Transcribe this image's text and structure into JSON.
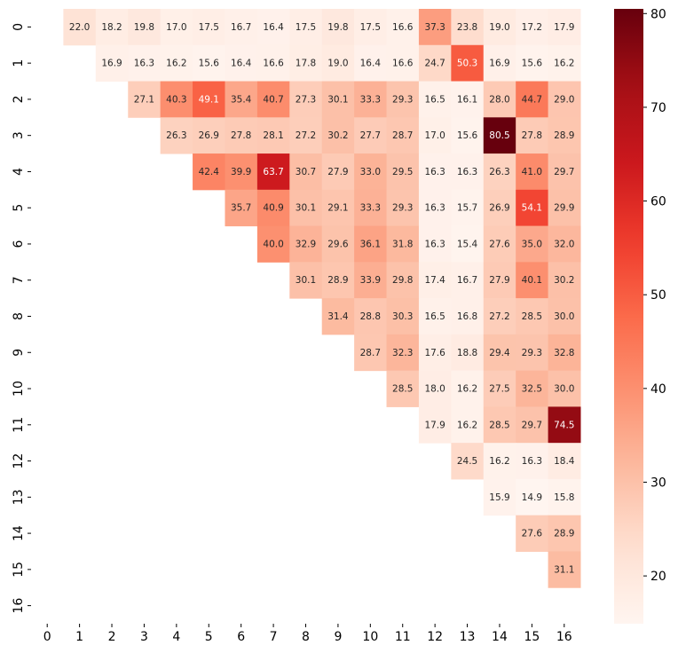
{
  "chart_data": {
    "type": "heatmap",
    "title": "",
    "xlabel": "",
    "ylabel": "",
    "x_tick_labels": [
      "0",
      "1",
      "2",
      "3",
      "4",
      "5",
      "6",
      "7",
      "8",
      "9",
      "10",
      "11",
      "12",
      "13",
      "14",
      "15",
      "16"
    ],
    "y_tick_labels": [
      "0",
      "1",
      "2",
      "3",
      "4",
      "5",
      "6",
      "7",
      "8",
      "9",
      "10",
      "11",
      "12",
      "13",
      "14",
      "15",
      "16"
    ],
    "colormap": "Reds",
    "vmin": 14.9,
    "vmax": 80.5,
    "colorbar_ticks": [
      20,
      30,
      40,
      50,
      60,
      70,
      80
    ],
    "colorbar_tick_labels": [
      "20",
      "30",
      "40",
      "50",
      "60",
      "70",
      "80"
    ],
    "mask": "lower triangle including diagonal",
    "values": [
      [
        null,
        22.0,
        18.2,
        19.8,
        17.0,
        17.5,
        16.7,
        16.4,
        17.5,
        19.8,
        17.5,
        16.6,
        37.3,
        23.8,
        19.0,
        17.2,
        17.9
      ],
      [
        null,
        null,
        16.9,
        16.3,
        16.2,
        15.6,
        16.4,
        16.6,
        17.8,
        19.0,
        16.4,
        16.6,
        24.7,
        50.3,
        16.9,
        15.6,
        16.2
      ],
      [
        null,
        null,
        null,
        27.1,
        40.3,
        49.1,
        35.4,
        40.7,
        27.3,
        30.1,
        33.3,
        29.3,
        16.5,
        16.1,
        28.0,
        44.7,
        29.0
      ],
      [
        null,
        null,
        null,
        null,
        26.3,
        26.9,
        27.8,
        28.1,
        27.2,
        30.2,
        27.7,
        28.7,
        17.0,
        15.6,
        80.5,
        27.8,
        28.9
      ],
      [
        null,
        null,
        null,
        null,
        null,
        42.4,
        39.9,
        63.7,
        30.7,
        27.9,
        33.0,
        29.5,
        16.3,
        16.3,
        26.3,
        41.0,
        29.7
      ],
      [
        null,
        null,
        null,
        null,
        null,
        null,
        35.7,
        40.9,
        30.1,
        29.1,
        33.3,
        29.3,
        16.3,
        15.7,
        26.9,
        54.1,
        29.9
      ],
      [
        null,
        null,
        null,
        null,
        null,
        null,
        null,
        40.0,
        32.9,
        29.6,
        36.1,
        31.8,
        16.3,
        15.4,
        27.6,
        35.0,
        32.0
      ],
      [
        null,
        null,
        null,
        null,
        null,
        null,
        null,
        null,
        30.1,
        28.9,
        33.9,
        29.8,
        17.4,
        16.7,
        27.9,
        40.1,
        30.2
      ],
      [
        null,
        null,
        null,
        null,
        null,
        null,
        null,
        null,
        null,
        31.4,
        28.8,
        30.3,
        16.5,
        16.8,
        27.2,
        28.5,
        30.0
      ],
      [
        null,
        null,
        null,
        null,
        null,
        null,
        null,
        null,
        null,
        null,
        28.7,
        32.3,
        17.6,
        18.8,
        29.4,
        29.3,
        32.8
      ],
      [
        null,
        null,
        null,
        null,
        null,
        null,
        null,
        null,
        null,
        null,
        null,
        28.5,
        18.0,
        16.2,
        27.5,
        32.5,
        30.0
      ],
      [
        null,
        null,
        null,
        null,
        null,
        null,
        null,
        null,
        null,
        null,
        null,
        null,
        17.9,
        16.2,
        28.5,
        29.7,
        74.5
      ],
      [
        null,
        null,
        null,
        null,
        null,
        null,
        null,
        null,
        null,
        null,
        null,
        null,
        null,
        24.5,
        16.2,
        16.3,
        18.4
      ],
      [
        null,
        null,
        null,
        null,
        null,
        null,
        null,
        null,
        null,
        null,
        null,
        null,
        null,
        null,
        15.9,
        14.9,
        15.8
      ],
      [
        null,
        null,
        null,
        null,
        null,
        null,
        null,
        null,
        null,
        null,
        null,
        null,
        null,
        null,
        null,
        27.6,
        28.9
      ],
      [
        null,
        null,
        null,
        null,
        null,
        null,
        null,
        null,
        null,
        null,
        null,
        null,
        null,
        null,
        null,
        null,
        31.1
      ],
      [
        null,
        null,
        null,
        null,
        null,
        null,
        null,
        null,
        null,
        null,
        null,
        null,
        null,
        null,
        null,
        null,
        null
      ]
    ]
  }
}
